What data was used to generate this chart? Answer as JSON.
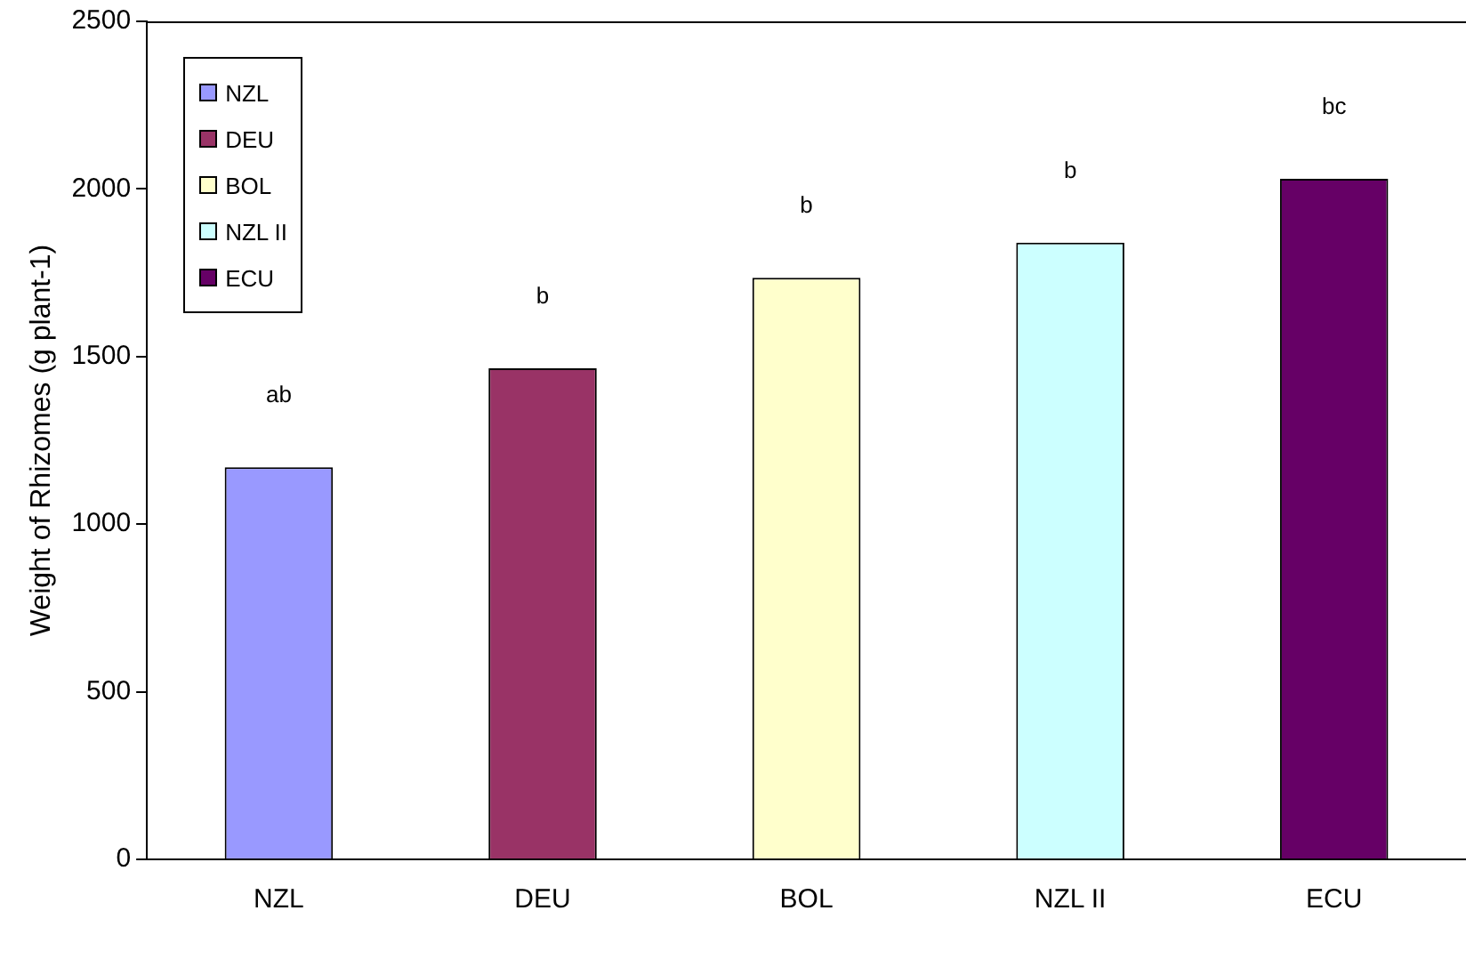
{
  "chart_data": {
    "type": "bar",
    "ylabel": "Weight of Rhizomes (g plant-1)",
    "categories": [
      "NZL",
      "DEU",
      "BOL",
      "NZL II",
      "ECU"
    ],
    "series": [
      {
        "name": "NZL",
        "color": "#9999ff",
        "values": [
          1170,
          null,
          null,
          null,
          null
        ]
      },
      {
        "name": "DEU",
        "color": "#993366",
        "values": [
          null,
          1465,
          null,
          null,
          null
        ]
      },
      {
        "name": "BOL",
        "color": "#ffffcc",
        "values": [
          null,
          null,
          1735,
          null,
          null
        ]
      },
      {
        "name": "NZL II",
        "color": "#ccffff",
        "values": [
          null,
          null,
          null,
          1840,
          null
        ]
      },
      {
        "name": "ECU",
        "color": "#660066",
        "values": [
          null,
          null,
          null,
          null,
          2030
        ]
      }
    ],
    "ylim": [
      0,
      2500
    ],
    "yticks": [
      0,
      500,
      1000,
      1500,
      2000,
      2500
    ],
    "grid": false,
    "legend": "top left",
    "annotations": [
      "ab",
      "b",
      "b",
      "b",
      "bc"
    ]
  }
}
